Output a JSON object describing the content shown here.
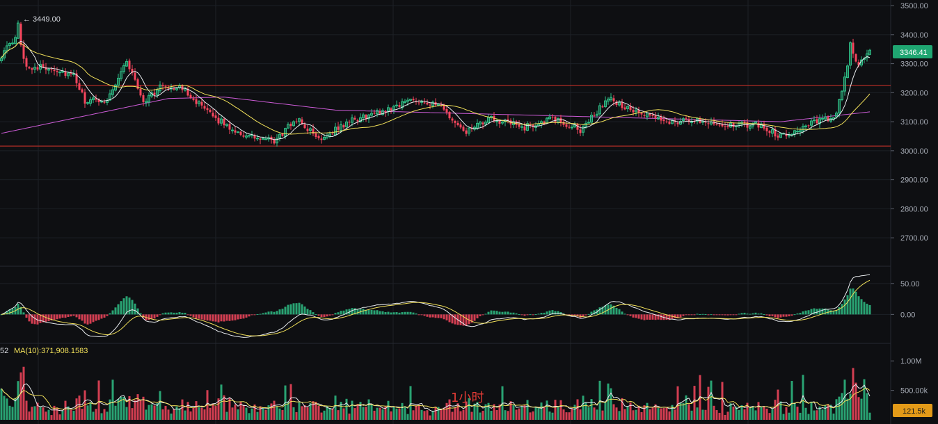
{
  "colors": {
    "background": "#0e0f12",
    "grid": "#1d2027",
    "up": "#2ebd85",
    "down": "#f6465d",
    "ma_fast": "#e9ecef",
    "ma_slow": "#f1e05a",
    "ma_long": "#cc5bd6",
    "support_resistance": "#d9342b",
    "price_tag": "#1fa672",
    "volume_tag": "#e39a18"
  },
  "annotations": {
    "high_label": "← 3449.00",
    "interval": "1小时",
    "volume_ma_prefix": "52",
    "volume_ma_label": "MA(10):371,908.1583"
  },
  "price_tags": {
    "last_price": "3346.41",
    "last_volume": "121.5k"
  },
  "chart_data": [
    {
      "type": "candlestick",
      "panel": "price",
      "y_ticks": [
        "3500.00",
        "3400.00",
        "3300.00",
        "3200.00",
        "3100.00",
        "3000.00",
        "2900.00",
        "2800.00",
        "2700.00"
      ],
      "ylim": [
        2650,
        3505
      ],
      "grid": true,
      "horizontal_lines": [
        3225,
        3016
      ],
      "highest": 3449.0,
      "last": 3346.41,
      "anchors": [
        [
          0,
          3330
        ],
        [
          6,
          3395
        ],
        [
          9,
          3290
        ],
        [
          18,
          3285
        ],
        [
          26,
          3255
        ],
        [
          30,
          3170
        ],
        [
          38,
          3175
        ],
        [
          45,
          3310
        ],
        [
          51,
          3170
        ],
        [
          58,
          3225
        ],
        [
          66,
          3210
        ],
        [
          74,
          3130
        ],
        [
          82,
          3080
        ],
        [
          88,
          3050
        ],
        [
          98,
          3030
        ],
        [
          106,
          3110
        ],
        [
          114,
          3040
        ],
        [
          125,
          3100
        ],
        [
          138,
          3140
        ],
        [
          148,
          3180
        ],
        [
          158,
          3150
        ],
        [
          166,
          3060
        ],
        [
          176,
          3110
        ],
        [
          188,
          3080
        ],
        [
          198,
          3110
        ],
        [
          208,
          3070
        ],
        [
          218,
          3180
        ],
        [
          228,
          3130
        ],
        [
          240,
          3100
        ],
        [
          252,
          3105
        ],
        [
          262,
          3085
        ],
        [
          272,
          3090
        ],
        [
          280,
          3050
        ],
        [
          290,
          3090
        ],
        [
          300,
          3120
        ],
        [
          305,
          3345
        ],
        [
          308,
          3300
        ],
        [
          312,
          3340
        ]
      ],
      "ma_fast_offset": 0,
      "ma_slow_offset": 0,
      "ma_long_points": [
        [
          0,
          3060
        ],
        [
          60,
          3180
        ],
        [
          80,
          3185
        ],
        [
          120,
          3140
        ],
        [
          200,
          3120
        ],
        [
          280,
          3100
        ],
        [
          313,
          3135
        ]
      ]
    },
    {
      "type": "macd",
      "panel": "macd",
      "y_ticks": [
        "50.00",
        "0.00"
      ],
      "ylim": [
        -40,
        70
      ]
    },
    {
      "type": "bar",
      "panel": "volume",
      "y_ticks": [
        "1.00M",
        "500.00k"
      ],
      "ylim": [
        0,
        1050000
      ],
      "ma_label": "MA(10):371,908.1583"
    }
  ]
}
